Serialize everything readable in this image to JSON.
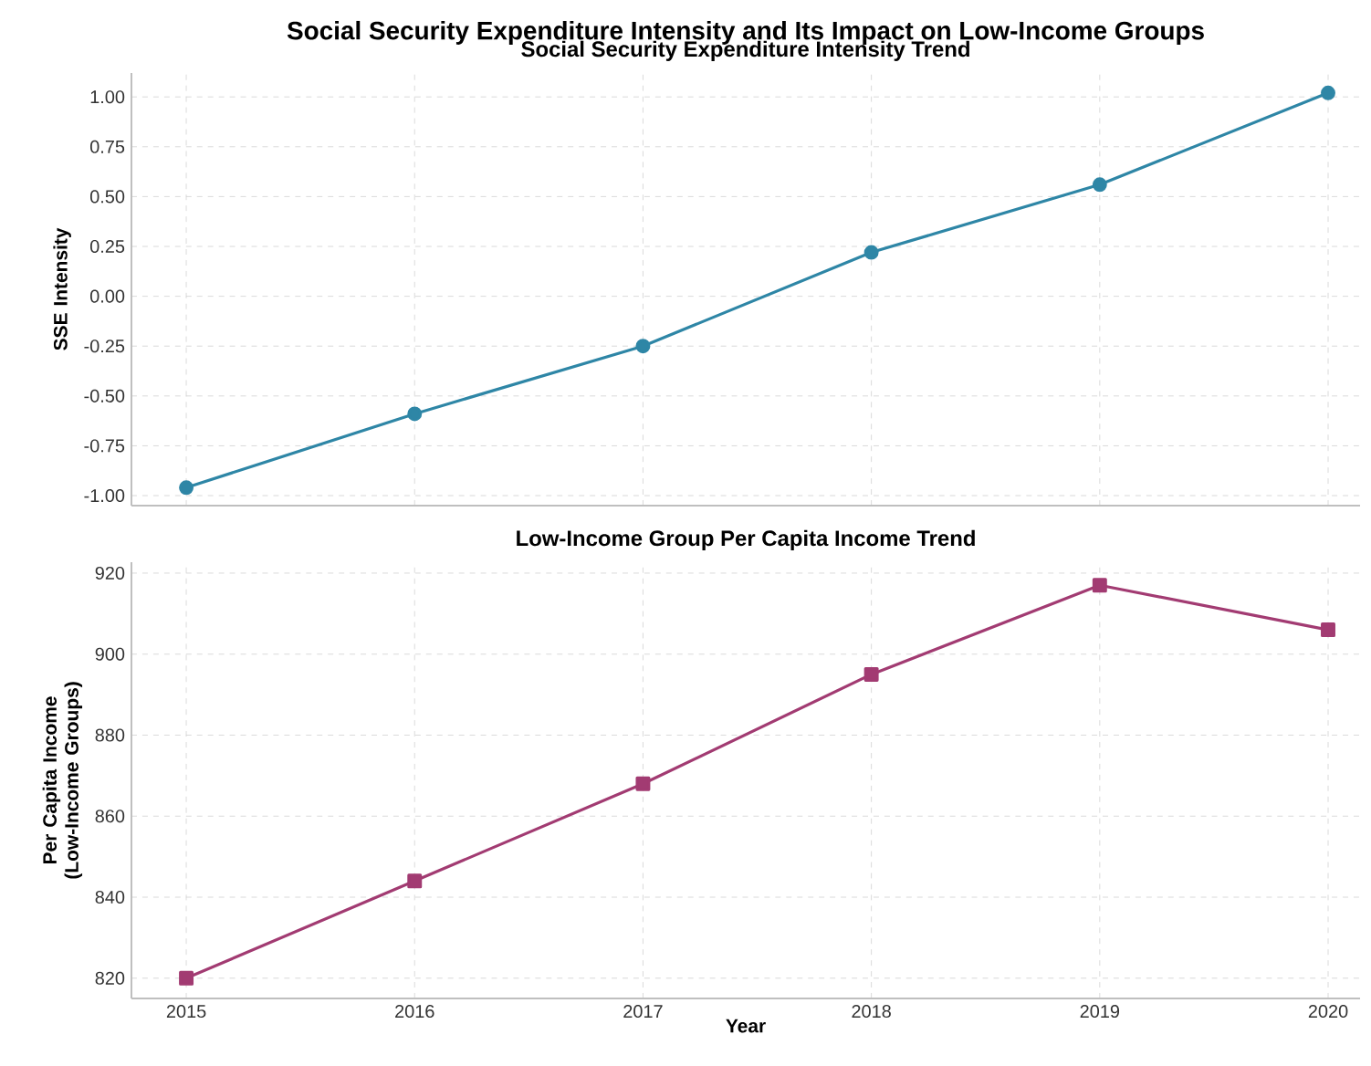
{
  "chart_data": [
    {
      "type": "line",
      "title": "Social Security Expenditure Intensity and Its Impact on Low-Income Groups",
      "subtitle": "Social Security Expenditure Intensity Trend",
      "ylabel": "SSE Intensity",
      "x": [
        2015,
        2016,
        2017,
        2018,
        2019,
        2020
      ],
      "series": [
        {
          "color": "#2e86a6",
          "values": [
            -0.96,
            -0.59,
            -0.25,
            0.22,
            0.56,
            1.02
          ]
        }
      ],
      "xlim": [
        2014.76,
        2020.14
      ],
      "ylim": [
        -1.05,
        1.12
      ],
      "xticks": [
        2015,
        2016,
        2017,
        2018,
        2019,
        2020
      ],
      "yticks": [
        {
          "value": -1,
          "label": "-1.00"
        },
        {
          "value": -0.75,
          "label": "-0.75"
        },
        {
          "value": -0.5,
          "label": "-0.50"
        },
        {
          "value": -0.25,
          "label": "-0.25"
        },
        {
          "value": 0,
          "label": "0.00"
        },
        {
          "value": 0.25,
          "label": "0.25"
        },
        {
          "value": 0.5,
          "label": "0.50"
        },
        {
          "value": 0.75,
          "label": "0.75"
        },
        {
          "value": 1,
          "label": "1.00"
        }
      ],
      "tick_labels": "y",
      "grid": true,
      "marker": "circle",
      "line_style": "solid"
    },
    {
      "type": "line",
      "title": "Low-Income Group Per Capita Income Trend",
      "xlabel": "Year",
      "ylabel": "Per Capita Income (Low-Income Groups)",
      "x": [
        2015,
        2016,
        2017,
        2018,
        2019,
        2020
      ],
      "series": [
        {
          "color": "#a23b72",
          "values": [
            820,
            844,
            868,
            895,
            917,
            906
          ]
        }
      ],
      "xlim": [
        2014.76,
        2020.14
      ],
      "ylim": [
        815,
        922.7
      ],
      "xticks": [
        2015,
        2016,
        2017,
        2018,
        2019,
        2020
      ],
      "yticks": [
        820,
        840,
        860,
        880,
        900,
        920
      ],
      "grid": true,
      "marker": "square",
      "line_style": "solid"
    }
  ]
}
